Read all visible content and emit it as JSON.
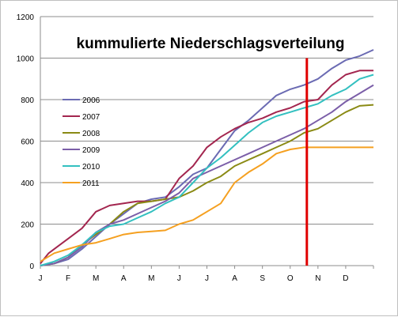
{
  "chart_data": {
    "type": "line",
    "title": "kummulierte Niederschlagsverteilung",
    "xlabel": "",
    "ylabel": "",
    "ylim": [
      0,
      1200
    ],
    "yticks": [
      0,
      200,
      400,
      600,
      800,
      1000,
      1200
    ],
    "xlim": [
      0,
      12
    ],
    "month_labels": [
      "J",
      "F",
      "M",
      "A",
      "M",
      "J",
      "J",
      "A",
      "S",
      "O",
      "N",
      "D"
    ],
    "grid": true,
    "legend_placement": "left",
    "marker_line": {
      "x": 9.6,
      "color": "#e00000"
    },
    "series": [
      {
        "name": "2006",
        "color": "#6b6bb3",
        "points": [
          [
            0,
            0
          ],
          [
            0.5,
            10
          ],
          [
            1,
            30
          ],
          [
            1.5,
            80
          ],
          [
            2,
            140
          ],
          [
            2.5,
            200
          ],
          [
            3,
            250
          ],
          [
            3.5,
            300
          ],
          [
            4,
            320
          ],
          [
            4.5,
            330
          ],
          [
            5,
            380
          ],
          [
            5.5,
            440
          ],
          [
            6,
            470
          ],
          [
            6.5,
            560
          ],
          [
            7,
            650
          ],
          [
            7.5,
            700
          ],
          [
            8,
            760
          ],
          [
            8.5,
            820
          ],
          [
            9,
            850
          ],
          [
            9.5,
            870
          ],
          [
            10,
            900
          ],
          [
            10.5,
            950
          ],
          [
            11,
            990
          ],
          [
            11.5,
            1010
          ],
          [
            12,
            1040
          ]
        ]
      },
      {
        "name": "2007",
        "color": "#a3264f",
        "points": [
          [
            0,
            10
          ],
          [
            0.3,
            60
          ],
          [
            0.6,
            90
          ],
          [
            1,
            130
          ],
          [
            1.5,
            180
          ],
          [
            2,
            260
          ],
          [
            2.5,
            290
          ],
          [
            3,
            300
          ],
          [
            3.5,
            310
          ],
          [
            4,
            310
          ],
          [
            4.5,
            320
          ],
          [
            5,
            420
          ],
          [
            5.5,
            480
          ],
          [
            6,
            570
          ],
          [
            6.5,
            620
          ],
          [
            7,
            660
          ],
          [
            7.5,
            690
          ],
          [
            8,
            710
          ],
          [
            8.5,
            740
          ],
          [
            9,
            760
          ],
          [
            9.5,
            790
          ],
          [
            10,
            800
          ],
          [
            10.5,
            870
          ],
          [
            11,
            920
          ],
          [
            11.5,
            940
          ],
          [
            12,
            940
          ]
        ]
      },
      {
        "name": "2008",
        "color": "#8a8a14",
        "points": [
          [
            0,
            0
          ],
          [
            0.5,
            10
          ],
          [
            1,
            40
          ],
          [
            1.5,
            100
          ],
          [
            2,
            150
          ],
          [
            2.5,
            200
          ],
          [
            3,
            260
          ],
          [
            3.5,
            300
          ],
          [
            4,
            310
          ],
          [
            4.5,
            320
          ],
          [
            5,
            330
          ],
          [
            5.5,
            360
          ],
          [
            6,
            400
          ],
          [
            6.5,
            430
          ],
          [
            7,
            480
          ],
          [
            7.5,
            510
          ],
          [
            8,
            540
          ],
          [
            8.5,
            570
          ],
          [
            9,
            600
          ],
          [
            9.5,
            640
          ],
          [
            10,
            660
          ],
          [
            10.5,
            700
          ],
          [
            11,
            740
          ],
          [
            11.5,
            770
          ],
          [
            12,
            775
          ]
        ]
      },
      {
        "name": "2009",
        "color": "#7b5ea8",
        "points": [
          [
            0,
            0
          ],
          [
            0.5,
            10
          ],
          [
            1,
            40
          ],
          [
            1.5,
            90
          ],
          [
            2,
            160
          ],
          [
            2.5,
            200
          ],
          [
            3,
            220
          ],
          [
            3.5,
            250
          ],
          [
            4,
            280
          ],
          [
            4.5,
            310
          ],
          [
            5,
            350
          ],
          [
            5.5,
            420
          ],
          [
            6,
            450
          ],
          [
            6.5,
            480
          ],
          [
            7,
            510
          ],
          [
            7.5,
            540
          ],
          [
            8,
            570
          ],
          [
            8.5,
            600
          ],
          [
            9,
            630
          ],
          [
            9.5,
            660
          ],
          [
            10,
            700
          ],
          [
            10.5,
            740
          ],
          [
            11,
            790
          ],
          [
            11.5,
            830
          ],
          [
            12,
            870
          ]
        ]
      },
      {
        "name": "2010",
        "color": "#33c0c0",
        "points": [
          [
            0,
            0
          ],
          [
            0.5,
            20
          ],
          [
            1,
            50
          ],
          [
            1.5,
            100
          ],
          [
            2,
            160
          ],
          [
            2.5,
            190
          ],
          [
            3,
            200
          ],
          [
            3.5,
            230
          ],
          [
            4,
            260
          ],
          [
            4.5,
            300
          ],
          [
            5,
            330
          ],
          [
            5.5,
            400
          ],
          [
            6,
            470
          ],
          [
            6.5,
            520
          ],
          [
            7,
            580
          ],
          [
            7.5,
            640
          ],
          [
            8,
            690
          ],
          [
            8.5,
            720
          ],
          [
            9,
            740
          ],
          [
            9.5,
            760
          ],
          [
            10,
            780
          ],
          [
            10.5,
            820
          ],
          [
            11,
            850
          ],
          [
            11.5,
            900
          ],
          [
            12,
            920
          ]
        ]
      },
      {
        "name": "2011",
        "color": "#f5a020",
        "points": [
          [
            0,
            20
          ],
          [
            0.5,
            60
          ],
          [
            1,
            80
          ],
          [
            1.5,
            100
          ],
          [
            2,
            110
          ],
          [
            2.5,
            130
          ],
          [
            3,
            150
          ],
          [
            3.5,
            160
          ],
          [
            4,
            165
          ],
          [
            4.5,
            170
          ],
          [
            5,
            200
          ],
          [
            5.5,
            220
          ],
          [
            6,
            260
          ],
          [
            6.5,
            300
          ],
          [
            7,
            400
          ],
          [
            7.5,
            450
          ],
          [
            8,
            490
          ],
          [
            8.5,
            540
          ],
          [
            9,
            560
          ],
          [
            9.5,
            570
          ],
          [
            10,
            570
          ],
          [
            10.5,
            570
          ],
          [
            11,
            570
          ],
          [
            11.5,
            570
          ],
          [
            12,
            570
          ]
        ]
      }
    ]
  }
}
